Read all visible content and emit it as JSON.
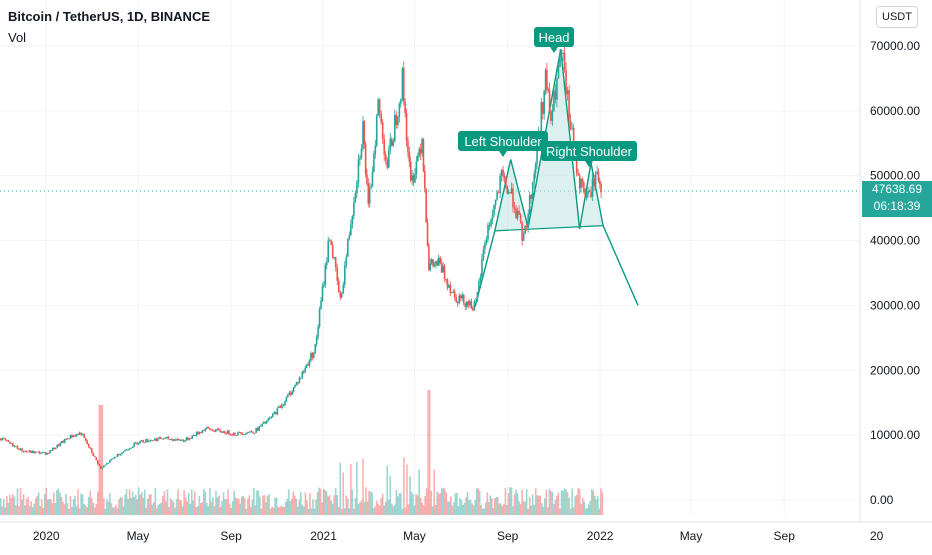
{
  "legend": {
    "title": "Bitcoin / TetherUS, 1D, BINANCE",
    "volume_label": "Vol"
  },
  "currency": "USDT",
  "last_price": {
    "value": "47638.69",
    "countdown": "06:18:39",
    "color": "#26a69a"
  },
  "colors": {
    "up": "#26a69a",
    "down": "#ef5350",
    "pattern": "#089981",
    "pattern_fill": "#b2dfdb"
  },
  "chart_data": {
    "type": "line",
    "series": [
      {
        "name": "",
        "x": [
          "2019-11-01",
          "2019-12-01",
          "2020-01-01",
          "2020-02-01",
          "2020-02-15",
          "2020-03-12",
          "2020-04-01",
          "2020-05-01",
          "2020-06-01",
          "2020-07-01",
          "2020-07-28",
          "2020-09-05",
          "2020-10-01",
          "2020-10-21",
          "2020-11-10",
          "2020-12-01",
          "2020-12-20",
          "2021-01-08",
          "2021-01-22",
          "2021-02-21",
          "2021-02-28",
          "2021-03-13",
          "2021-03-25",
          "2021-04-14",
          "2021-04-25",
          "2021-05-10",
          "2021-05-19",
          "2021-06-01",
          "2021-06-22",
          "2021-07-20",
          "2021-08-01",
          "2021-08-23",
          "2021-09-07",
          "2021-09-21",
          "2021-10-05",
          "2021-10-20",
          "2021-10-27",
          "2021-11-10",
          "2021-11-26",
          "2021-12-04",
          "2021-12-15",
          "2021-12-27",
          "2022-01-03"
        ],
        "y": [
          9500,
          7500,
          7200,
          9800,
          10300,
          4800,
          6800,
          9000,
          9500,
          9200,
          11000,
          10200,
          10600,
          12500,
          15300,
          19000,
          23500,
          41000,
          30500,
          57500,
          44500,
          61000,
          51500,
          64800,
          48500,
          56000,
          36000,
          36500,
          31500,
          29800,
          40000,
          49500,
          46500,
          40000,
          50500,
          65000,
          58500,
          68800,
          54000,
          49000,
          46500,
          50500,
          47600
        ]
      }
    ],
    "annotations": [
      "Left Shoulder",
      "Head",
      "Right Shoulder"
    ],
    "y_ticks": [
      "0.00",
      "10000.00",
      "20000.00",
      "30000.00",
      "40000.00",
      "50000.00",
      "60000.00",
      "70000.00"
    ],
    "x_ticks": [
      "2020",
      "May",
      "Sep",
      "2021",
      "May",
      "Sep",
      "2022",
      "May",
      "Sep",
      "20"
    ],
    "ylim": [
      -1500,
      75000
    ],
    "xlim": [
      "2019-11-01",
      "2022-12-10"
    ],
    "grid": true,
    "volume": "histogram"
  }
}
